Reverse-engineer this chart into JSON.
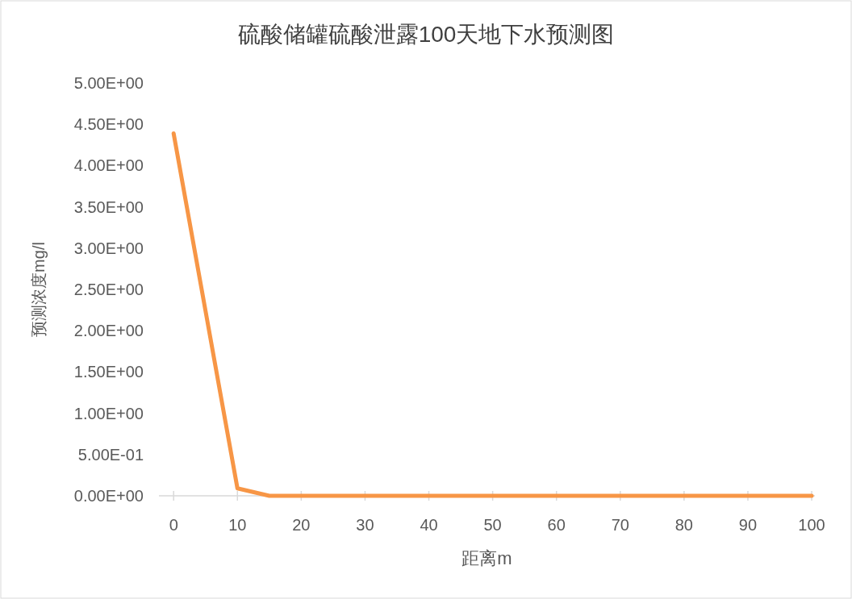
{
  "chart_data": {
    "type": "line",
    "title": "硫酸储罐硫酸泄露100天地下水预测图",
    "xlabel": "距离m",
    "ylabel": "预测浓度mg/l",
    "x": [
      0,
      10,
      15,
      20,
      25,
      30,
      35,
      40,
      45,
      50,
      55,
      60,
      65,
      70,
      75,
      80,
      85,
      90,
      95,
      100
    ],
    "series": [
      {
        "color": "#f79646",
        "values": [
          4.39,
          0.09,
          0,
          0,
          0,
          0,
          0,
          0,
          0,
          0,
          0,
          0,
          0,
          0,
          0,
          0,
          0,
          0,
          0,
          0
        ]
      }
    ],
    "xlim": [
      -2.3,
      100.5
    ],
    "xticks": [
      0,
      10,
      20,
      30,
      40,
      50,
      60,
      70,
      80,
      90,
      100
    ],
    "ylim": [
      0,
      5
    ],
    "yticks": [
      {
        "value": 0,
        "label": "0.00E+00"
      },
      {
        "value": 0.5,
        "label": "5.00E-01"
      },
      {
        "value": 1,
        "label": "1.00E+00"
      },
      {
        "value": 1.5,
        "label": "1.50E+00"
      },
      {
        "value": 2,
        "label": "2.00E+00"
      },
      {
        "value": 2.5,
        "label": "2.50E+00"
      },
      {
        "value": 3,
        "label": "3.00E+00"
      },
      {
        "value": 3.5,
        "label": "3.50E+00"
      },
      {
        "value": 4,
        "label": "4.00E+00"
      },
      {
        "value": 4.5,
        "label": "4.50E+00"
      },
      {
        "value": 5,
        "label": "5.00E+00"
      }
    ],
    "grid": false,
    "marker": "none",
    "line_style": "solid"
  }
}
